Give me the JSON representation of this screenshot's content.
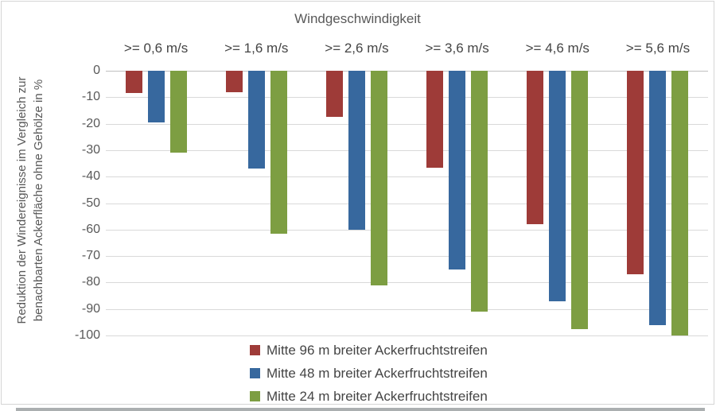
{
  "chart_data": {
    "type": "bar",
    "title": "Windgeschwindigkeit",
    "categories": [
      ">= 0,6 m/s",
      ">= 1,6 m/s",
      ">= 2,6 m/s",
      ">= 3,6 m/s",
      ">= 4,6 m/s",
      ">= 5,6 m/s"
    ],
    "series": [
      {
        "name": "Mitte 96 m breiter Ackerfruchtstreifen",
        "color": "#9E3B38",
        "values": [
          -8.5,
          -8,
          -17.5,
          -36.5,
          -58,
          -77
        ]
      },
      {
        "name": "Mitte 48 m breiter Ackerfruchtstreifen",
        "color": "#37689E",
        "values": [
          -19.5,
          -37,
          -60,
          -75,
          -87,
          -96
        ]
      },
      {
        "name": "Mitte 24 m breiter Ackerfruchtstreifen",
        "color": "#7D9E42",
        "values": [
          -31,
          -61.5,
          -81,
          -91,
          -97.5,
          -100
        ]
      }
    ],
    "ylabel_line1": "Reduktion der Windereignisse im Vergleich zur",
    "ylabel_line2": "benachbarten Ackerfläche ohne Gehölze in %",
    "ylim": [
      -100,
      0
    ],
    "ytick_labels": [
      "0",
      "-10",
      "-20",
      "-30",
      "-40",
      "-50",
      "-60",
      "-70",
      "-80",
      "-90",
      "-100"
    ],
    "grid": true,
    "legend_position": "bottom",
    "colors": {
      "grid": "#D9D9D9",
      "zero_axis": "#BFBFBF",
      "axis_text": "#595959",
      "label_text": "#444444",
      "frame_border": "#D5D5D5",
      "bottom_strip": "#ABAFB0"
    }
  }
}
